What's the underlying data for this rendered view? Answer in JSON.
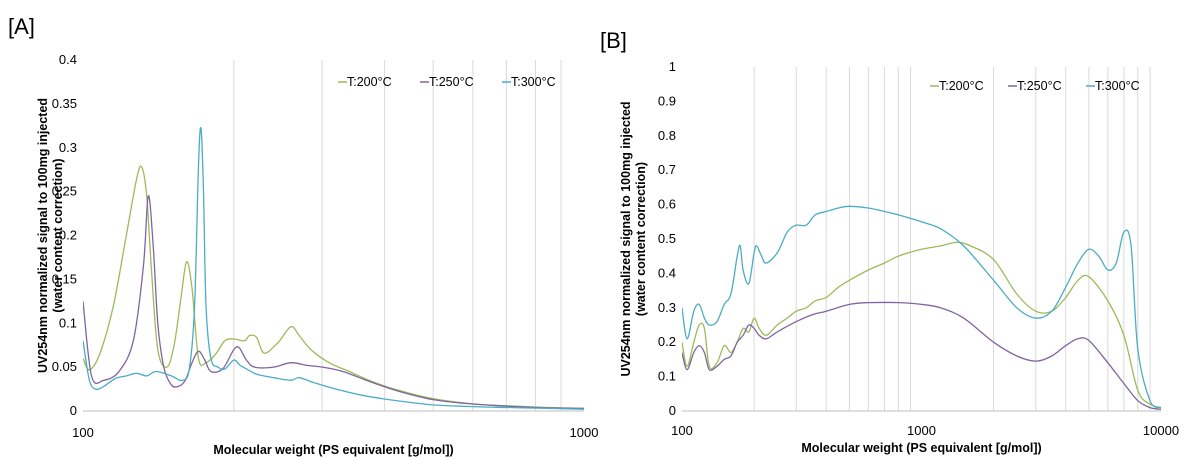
{
  "chart_data": [
    {
      "panel_label": "[A]",
      "type": "line",
      "xlabel": "Molecular weight (PS equivalent [g/mol])",
      "ylabel_line1": "UV254nm normalized signal to 100mg injected",
      "ylabel_line2": "(water content correction)",
      "x_scale": "log",
      "xlim": [
        100,
        1000
      ],
      "ylim": [
        0,
        0.4
      ],
      "x_ticks": [
        100,
        1000
      ],
      "x_tick_labels": [
        "100",
        "1000"
      ],
      "y_ticks": [
        0,
        0.05,
        0.1,
        0.15,
        0.2,
        0.25,
        0.3,
        0.35,
        0.4
      ],
      "y_tick_labels": [
        "0",
        "0.05",
        "0.1",
        "0.15",
        "0.2",
        "0.25",
        "0.3",
        "0.35",
        "0.4"
      ],
      "grid": "vertical minor lines",
      "legend_position": "top-right",
      "series": [
        {
          "name": "T:200°C",
          "color": "#9BBB59",
          "x": [
            100,
            103,
            108,
            115,
            122,
            128,
            131,
            134,
            137,
            141,
            147,
            152,
            157,
            161,
            165,
            170,
            176,
            184,
            192,
            200,
            210,
            215,
            222,
            230,
            245,
            260,
            270,
            285,
            310,
            340,
            380,
            430,
            500,
            600,
            700,
            850,
            1000
          ],
          "y": [
            0.06,
            0.047,
            0.065,
            0.12,
            0.2,
            0.265,
            0.278,
            0.245,
            0.16,
            0.07,
            0.05,
            0.075,
            0.13,
            0.17,
            0.14,
            0.06,
            0.055,
            0.065,
            0.08,
            0.082,
            0.08,
            0.086,
            0.084,
            0.066,
            0.078,
            0.096,
            0.086,
            0.07,
            0.055,
            0.045,
            0.033,
            0.023,
            0.014,
            0.008,
            0.006,
            0.004,
            0.003
          ]
        },
        {
          "name": "T:250°C",
          "color": "#8064A2",
          "x": [
            100,
            104,
            110,
            118,
            126,
            132,
            135,
            138,
            141,
            145,
            150,
            155,
            160,
            165,
            170,
            175,
            180,
            190,
            200,
            205,
            212,
            220,
            240,
            260,
            280,
            300,
            330,
            380,
            430,
            500,
            600,
            800,
            1000
          ],
          "y": [
            0.125,
            0.04,
            0.035,
            0.045,
            0.08,
            0.165,
            0.245,
            0.19,
            0.1,
            0.05,
            0.03,
            0.028,
            0.035,
            0.055,
            0.068,
            0.058,
            0.045,
            0.048,
            0.07,
            0.072,
            0.058,
            0.05,
            0.05,
            0.055,
            0.052,
            0.05,
            0.045,
            0.032,
            0.022,
            0.013,
            0.008,
            0.004,
            0.003
          ]
        },
        {
          "name": "T:300°C",
          "color": "#4BACC6",
          "x": [
            100,
            103,
            106,
            110,
            116,
            122,
            128,
            134,
            140,
            150,
            158,
            163,
            167,
            170,
            172,
            174,
            176,
            180,
            186,
            192,
            200,
            206,
            212,
            222,
            240,
            260,
            270,
            290,
            320,
            360,
            420,
            500,
            600,
            700,
            850,
            1000
          ],
          "y": [
            0.08,
            0.035,
            0.025,
            0.028,
            0.037,
            0.04,
            0.043,
            0.04,
            0.045,
            0.04,
            0.035,
            0.048,
            0.12,
            0.28,
            0.322,
            0.25,
            0.12,
            0.06,
            0.05,
            0.048,
            0.058,
            0.052,
            0.048,
            0.042,
            0.038,
            0.035,
            0.038,
            0.032,
            0.025,
            0.018,
            0.012,
            0.007,
            0.005,
            0.004,
            0.003,
            0.002
          ]
        }
      ]
    },
    {
      "panel_label": "[B]",
      "type": "line",
      "xlabel": "Molecular weight (PS equivalent [g/mol])",
      "ylabel_line1": "UV254nm normalized signal to 100mg injected",
      "ylabel_line2": "(water content correction)",
      "x_scale": "log",
      "xlim": [
        100,
        10000
      ],
      "ylim": [
        0,
        1
      ],
      "x_ticks": [
        100,
        1000,
        10000
      ],
      "x_tick_labels": [
        "100",
        "1000",
        "10000"
      ],
      "y_ticks": [
        0,
        0.1,
        0.2,
        0.3,
        0.4,
        0.5,
        0.6,
        0.7,
        0.8,
        0.9,
        1
      ],
      "y_tick_labels": [
        "0",
        "0.1",
        "0.2",
        "0.3",
        "0.4",
        "0.5",
        "0.6",
        "0.7",
        "0.8",
        "0.9",
        "1"
      ],
      "grid": "vertical minor lines",
      "legend_position": "top-right",
      "series": [
        {
          "name": "T:200°C",
          "color": "#9BBB59",
          "x": [
            100,
            105,
            112,
            118,
            124,
            130,
            140,
            150,
            160,
            170,
            180,
            190,
            200,
            210,
            225,
            250,
            275,
            300,
            330,
            360,
            400,
            450,
            500,
            600,
            700,
            800,
            1000,
            1200,
            1400,
            1600,
            2000,
            2500,
            3000,
            3500,
            4000,
            4500,
            5000,
            6000,
            7000,
            8000,
            9000,
            10000
          ],
          "y": [
            0.2,
            0.13,
            0.2,
            0.25,
            0.24,
            0.13,
            0.14,
            0.19,
            0.17,
            0.2,
            0.24,
            0.23,
            0.27,
            0.24,
            0.22,
            0.25,
            0.27,
            0.29,
            0.3,
            0.32,
            0.33,
            0.36,
            0.38,
            0.41,
            0.43,
            0.45,
            0.47,
            0.48,
            0.49,
            0.48,
            0.44,
            0.34,
            0.29,
            0.29,
            0.33,
            0.38,
            0.39,
            0.32,
            0.22,
            0.06,
            0.02,
            0.01
          ]
        },
        {
          "name": "T:250°C",
          "color": "#8064A2",
          "x": [
            100,
            105,
            112,
            118,
            124,
            130,
            140,
            150,
            160,
            170,
            180,
            190,
            200,
            210,
            225,
            250,
            300,
            350,
            400,
            500,
            600,
            800,
            1000,
            1200,
            1500,
            2000,
            2500,
            3000,
            3500,
            4000,
            4500,
            5000,
            6000,
            7000,
            8000,
            9000,
            10000
          ],
          "y": [
            0.17,
            0.12,
            0.17,
            0.19,
            0.17,
            0.12,
            0.13,
            0.15,
            0.16,
            0.2,
            0.22,
            0.25,
            0.24,
            0.22,
            0.21,
            0.23,
            0.26,
            0.28,
            0.29,
            0.31,
            0.315,
            0.315,
            0.31,
            0.3,
            0.27,
            0.2,
            0.16,
            0.145,
            0.16,
            0.19,
            0.21,
            0.205,
            0.14,
            0.08,
            0.03,
            0.01,
            0.005
          ]
        },
        {
          "name": "T:300°C",
          "color": "#4BACC6",
          "x": [
            100,
            105,
            112,
            118,
            124,
            130,
            140,
            150,
            160,
            170,
            175,
            180,
            190,
            200,
            205,
            215,
            225,
            250,
            275,
            300,
            330,
            360,
            400,
            450,
            500,
            600,
            700,
            800,
            1000,
            1200,
            1500,
            2000,
            2500,
            3000,
            3500,
            4000,
            4500,
            5000,
            5500,
            6000,
            6500,
            7000,
            7500,
            8000,
            9000,
            10000
          ],
          "y": [
            0.3,
            0.21,
            0.29,
            0.31,
            0.27,
            0.25,
            0.26,
            0.31,
            0.34,
            0.45,
            0.48,
            0.41,
            0.37,
            0.46,
            0.48,
            0.45,
            0.43,
            0.46,
            0.52,
            0.54,
            0.54,
            0.57,
            0.58,
            0.59,
            0.595,
            0.59,
            0.58,
            0.57,
            0.55,
            0.53,
            0.48,
            0.38,
            0.3,
            0.27,
            0.29,
            0.36,
            0.43,
            0.47,
            0.45,
            0.41,
            0.43,
            0.52,
            0.48,
            0.18,
            0.03,
            0.01
          ]
        }
      ]
    }
  ]
}
